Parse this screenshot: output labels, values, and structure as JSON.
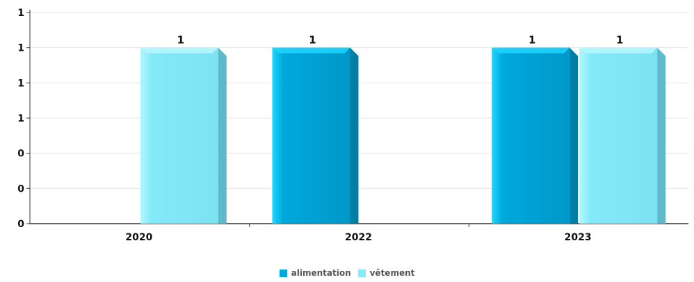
{
  "chart_data": {
    "type": "bar",
    "categories": [
      "2020",
      "2022",
      "2023"
    ],
    "series": [
      {
        "name": "alimentation",
        "values": [
          null,
          1,
          1
        ],
        "color": "#00A8DC"
      },
      {
        "name": "vêtement",
        "values": [
          1,
          null,
          1
        ],
        "color": "#84EAFA"
      }
    ],
    "y_tick_labels": [
      "0",
      "0",
      "0",
      "1",
      "1",
      "1",
      "1"
    ],
    "ylim": [
      0,
      1.2
    ],
    "data_label_text": "1",
    "grid": true,
    "legend_position": "bottom-center",
    "title": "",
    "xlabel": "",
    "ylabel": ""
  }
}
